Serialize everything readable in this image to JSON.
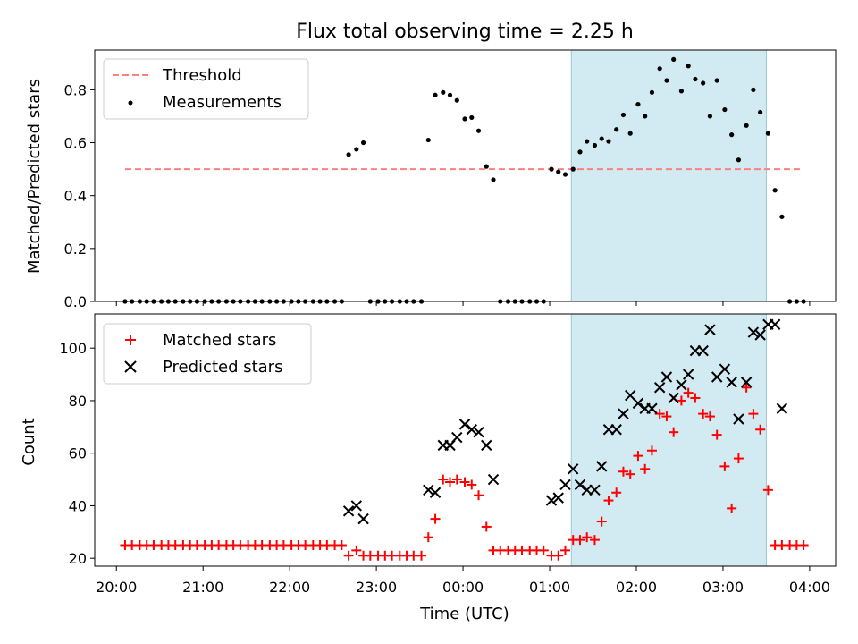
{
  "chart_data": [
    {
      "type": "scatter",
      "title": "Flux total observing time = 2.25 h",
      "ylabel": "Matched/Predicted stars",
      "ylim": [
        0,
        0.95
      ],
      "xlim_hours": [
        19.75,
        28.3
      ],
      "yticks": [
        "0.0",
        "0.2",
        "0.4",
        "0.6",
        "0.8"
      ],
      "highlight_span_hours": [
        25.25,
        27.5
      ],
      "colors": {
        "span": "#add8e6",
        "threshold": "#ff7f7f",
        "measurements": "#000000"
      },
      "legend_position": "upper-left",
      "series": [
        {
          "name": "Threshold",
          "style": "dashed-line",
          "x": [
            20.1,
            27.9
          ],
          "y": [
            0.5,
            0.5
          ]
        },
        {
          "name": "Measurements",
          "style": "points",
          "x": [
            20.1,
            20.18,
            20.27,
            20.35,
            20.43,
            20.52,
            20.6,
            20.68,
            20.77,
            20.85,
            20.93,
            21.02,
            21.1,
            21.18,
            21.27,
            21.35,
            21.43,
            21.52,
            21.6,
            21.68,
            21.77,
            21.85,
            21.93,
            22.02,
            22.1,
            22.18,
            22.27,
            22.35,
            22.43,
            22.52,
            22.6,
            22.68,
            22.77,
            22.85,
            22.93,
            23.02,
            23.1,
            23.18,
            23.27,
            23.35,
            23.43,
            23.52,
            23.6,
            23.68,
            23.77,
            23.85,
            23.93,
            24.02,
            24.1,
            24.18,
            24.27,
            24.35,
            24.43,
            24.52,
            24.6,
            24.68,
            24.77,
            24.85,
            24.93,
            25.02,
            25.1,
            25.18,
            25.27,
            25.35,
            25.43,
            25.52,
            25.6,
            25.68,
            25.77,
            25.85,
            25.93,
            26.02,
            26.1,
            26.18,
            26.27,
            26.35,
            26.43,
            26.52,
            26.6,
            26.68,
            26.77,
            26.85,
            26.93,
            27.02,
            27.1,
            27.18,
            27.27,
            27.35,
            27.43,
            27.52,
            27.6,
            27.68,
            27.77,
            27.85,
            27.93
          ],
          "y": [
            0,
            0,
            0,
            0,
            0,
            0,
            0,
            0,
            0,
            0,
            0,
            0,
            0,
            0,
            0,
            0,
            0,
            0,
            0,
            0,
            0,
            0,
            0,
            0,
            0,
            0,
            0,
            0,
            0,
            0,
            0,
            0.555,
            0.575,
            0.6,
            0,
            0,
            0,
            0,
            0,
            0,
            0,
            0,
            0.61,
            0.78,
            0.79,
            0.78,
            0.76,
            0.69,
            0.695,
            0.645,
            0.51,
            0.46,
            0,
            0,
            0,
            0,
            0,
            0,
            0,
            0.5,
            0.49,
            0.48,
            0.5,
            0.565,
            0.605,
            0.59,
            0.615,
            0.605,
            0.65,
            0.705,
            0.635,
            0.745,
            0.7,
            0.79,
            0.88,
            0.835,
            0.915,
            0.795,
            0.89,
            0.84,
            0.825,
            0.7,
            0.835,
            0.725,
            0.63,
            0.535,
            0.665,
            0.8,
            0.715,
            0.635,
            0.42,
            0.32,
            0,
            0,
            0
          ]
        }
      ]
    },
    {
      "type": "scatter",
      "xlabel": "Time (UTC)",
      "ylabel": "Count",
      "ylim": [
        17,
        113
      ],
      "xlim_hours": [
        19.75,
        28.3
      ],
      "yticks": [
        "20",
        "40",
        "60",
        "80",
        "100"
      ],
      "xtick_labels": [
        "20:00",
        "21:00",
        "22:00",
        "23:00",
        "00:00",
        "01:00",
        "02:00",
        "03:00",
        "04:00"
      ],
      "highlight_span_hours": [
        25.25,
        27.5
      ],
      "colors": {
        "span": "#add8e6",
        "matched": "#ff0000",
        "predicted": "#000000"
      },
      "legend_position": "upper-left",
      "series": [
        {
          "name": "Matched stars",
          "style": "plus",
          "x": [
            20.1,
            20.18,
            20.27,
            20.35,
            20.43,
            20.52,
            20.6,
            20.68,
            20.77,
            20.85,
            20.93,
            21.02,
            21.1,
            21.18,
            21.27,
            21.35,
            21.43,
            21.52,
            21.6,
            21.68,
            21.77,
            21.85,
            21.93,
            22.02,
            22.1,
            22.18,
            22.27,
            22.35,
            22.43,
            22.52,
            22.6,
            22.68,
            22.77,
            22.85,
            22.93,
            23.02,
            23.1,
            23.18,
            23.27,
            23.35,
            23.43,
            23.52,
            23.6,
            23.68,
            23.77,
            23.85,
            23.93,
            24.02,
            24.1,
            24.18,
            24.27,
            24.35,
            24.43,
            24.52,
            24.6,
            24.68,
            24.77,
            24.85,
            24.93,
            25.02,
            25.1,
            25.18,
            25.27,
            25.35,
            25.43,
            25.52,
            25.6,
            25.68,
            25.77,
            25.85,
            25.93,
            26.02,
            26.1,
            26.18,
            26.27,
            26.35,
            26.43,
            26.52,
            26.6,
            26.68,
            26.77,
            26.85,
            26.93,
            27.02,
            27.1,
            27.18,
            27.27,
            27.35,
            27.43,
            27.52,
            27.6,
            27.68,
            27.77,
            27.85,
            27.93
          ],
          "y": [
            25,
            25,
            25,
            25,
            25,
            25,
            25,
            25,
            25,
            25,
            25,
            25,
            25,
            25,
            25,
            25,
            25,
            25,
            25,
            25,
            25,
            25,
            25,
            25,
            25,
            25,
            25,
            25,
            25,
            25,
            25,
            21,
            23,
            21,
            21,
            21,
            21,
            21,
            21,
            21,
            21,
            21,
            28,
            35,
            50,
            49,
            50,
            49,
            48,
            44,
            32,
            23,
            23,
            23,
            23,
            23,
            23,
            23,
            23,
            21,
            21,
            23,
            27,
            27,
            28,
            27,
            34,
            42,
            45,
            53,
            52,
            59,
            54,
            61,
            75,
            74,
            68,
            80,
            83,
            81,
            75,
            74,
            67,
            55,
            39,
            58,
            85,
            75,
            69,
            46,
            25,
            25,
            25,
            25,
            25
          ]
        },
        {
          "name": "Predicted stars",
          "style": "x",
          "x": [
            22.68,
            22.77,
            22.85,
            24.35,
            25.02,
            25.1,
            25.18,
            25.27,
            25.35,
            25.43,
            25.52,
            25.6,
            25.68,
            25.77,
            25.85,
            25.93,
            26.02,
            26.1,
            26.18,
            26.27,
            26.35,
            26.43,
            26.52,
            26.6,
            26.68,
            26.77,
            26.85,
            26.93,
            27.02,
            27.1,
            27.18,
            27.27,
            27.35,
            27.43,
            27.52,
            27.6,
            27.68,
            23.6,
            23.68,
            23.77,
            23.85,
            23.93,
            24.02,
            24.1,
            24.18,
            24.27
          ],
          "y": [
            38,
            40,
            35,
            50,
            42,
            43,
            48,
            54,
            48,
            46,
            46,
            55,
            69,
            69,
            75,
            82,
            79,
            77,
            77,
            85,
            89,
            81,
            86,
            90,
            99,
            99,
            107,
            89,
            92,
            87,
            73,
            87,
            106,
            105,
            109,
            109,
            77,
            46,
            45,
            63,
            63,
            66,
            71,
            69,
            68,
            63
          ]
        }
      ]
    }
  ]
}
